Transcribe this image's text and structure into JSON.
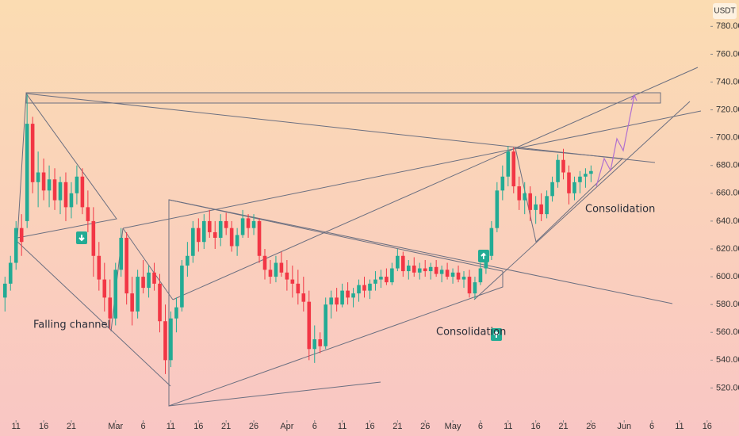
{
  "chart_data": {
    "type": "candlestick",
    "currency": "USDT",
    "x": [
      -2,
      -1,
      0,
      1,
      2,
      3,
      4,
      5,
      6,
      7,
      8,
      9,
      10,
      11,
      12,
      13,
      14,
      15,
      16,
      17,
      18,
      19,
      20,
      21,
      22,
      23,
      24,
      25,
      26,
      27,
      28,
      29,
      30,
      31,
      32,
      33,
      34,
      35,
      36,
      37,
      38,
      39,
      40,
      41,
      42,
      43,
      44,
      45,
      46,
      47,
      48,
      49,
      50,
      51,
      52,
      53,
      54,
      55,
      56,
      57,
      58,
      59,
      60,
      61,
      62,
      63,
      64,
      65,
      66,
      67,
      68,
      69,
      70,
      71,
      72,
      73,
      74,
      75,
      76,
      77,
      78,
      79,
      80,
      81,
      82,
      83,
      84,
      85,
      86,
      87,
      88,
      89,
      90,
      91,
      92,
      93,
      94,
      95,
      96,
      97,
      98,
      99,
      100,
      101,
      102,
      103,
      104
    ],
    "open": [
      585,
      595,
      610,
      635,
      640,
      710,
      668,
      675,
      662,
      670,
      655,
      668,
      650,
      660,
      672,
      650,
      640,
      615,
      598,
      585,
      570,
      605,
      628,
      588,
      575,
      600,
      592,
      603,
      595,
      568,
      540,
      570,
      578,
      608,
      615,
      635,
      625,
      640,
      632,
      628,
      640,
      635,
      622,
      630,
      642,
      635,
      640,
      615,
      605,
      600,
      610,
      603,
      598,
      595,
      588,
      582,
      548,
      555,
      550,
      580,
      585,
      580,
      590,
      585,
      588,
      594,
      590,
      595,
      598,
      600,
      596,
      606,
      615,
      604,
      608,
      603,
      606,
      604,
      607,
      602,
      605,
      600,
      603,
      598,
      600,
      588,
      596,
      606,
      615,
      635,
      662,
      672,
      690,
      665,
      655,
      660,
      648,
      652,
      645,
      658,
      668,
      684,
      675,
      660,
      668,
      672,
      674
    ],
    "high": [
      600,
      615,
      640,
      645,
      731,
      715,
      690,
      685,
      680,
      678,
      672,
      675,
      668,
      680,
      678,
      662,
      650,
      625,
      610,
      598,
      610,
      635,
      632,
      600,
      605,
      612,
      608,
      610,
      602,
      580,
      575,
      585,
      612,
      625,
      640,
      642,
      645,
      648,
      640,
      645,
      646,
      640,
      635,
      648,
      645,
      645,
      642,
      620,
      612,
      615,
      618,
      612,
      608,
      605,
      600,
      590,
      565,
      560,
      585,
      590,
      592,
      595,
      596,
      592,
      598,
      600,
      598,
      604,
      605,
      606,
      610,
      620,
      618,
      612,
      614,
      610,
      612,
      610,
      612,
      608,
      610,
      606,
      608,
      604,
      605,
      600,
      610,
      618,
      640,
      668,
      680,
      694,
      693,
      672,
      668,
      665,
      658,
      660,
      662,
      672,
      688,
      692,
      680,
      672,
      676,
      678,
      680
    ],
    "low": [
      575,
      590,
      605,
      615,
      635,
      660,
      650,
      655,
      650,
      648,
      645,
      640,
      642,
      652,
      645,
      632,
      600,
      590,
      575,
      562,
      565,
      600,
      580,
      565,
      570,
      588,
      585,
      590,
      560,
      530,
      535,
      560,
      575,
      600,
      610,
      618,
      620,
      628,
      620,
      622,
      630,
      618,
      615,
      628,
      628,
      630,
      610,
      598,
      595,
      596,
      600,
      590,
      585,
      580,
      575,
      540,
      538,
      545,
      548,
      570,
      575,
      578,
      580,
      578,
      582,
      585,
      584,
      590,
      592,
      594,
      594,
      604,
      600,
      598,
      600,
      598,
      600,
      598,
      600,
      596,
      598,
      595,
      596,
      592,
      585,
      584,
      594,
      602,
      612,
      632,
      655,
      665,
      660,
      648,
      645,
      640,
      638,
      640,
      642,
      654,
      664,
      670,
      652,
      655,
      660,
      664,
      668
    ],
    "close": [
      595,
      610,
      635,
      625,
      710,
      668,
      675,
      662,
      670,
      655,
      668,
      650,
      660,
      672,
      650,
      640,
      615,
      598,
      585,
      570,
      605,
      628,
      588,
      575,
      600,
      592,
      603,
      595,
      568,
      540,
      570,
      578,
      608,
      615,
      635,
      625,
      640,
      632,
      628,
      640,
      635,
      622,
      630,
      642,
      635,
      640,
      615,
      605,
      600,
      610,
      603,
      598,
      595,
      588,
      582,
      548,
      555,
      550,
      580,
      585,
      580,
      590,
      585,
      588,
      594,
      590,
      595,
      598,
      600,
      596,
      606,
      615,
      604,
      608,
      603,
      606,
      604,
      607,
      602,
      605,
      600,
      603,
      598,
      600,
      588,
      596,
      606,
      615,
      635,
      662,
      672,
      690,
      665,
      655,
      660,
      648,
      652,
      645,
      658,
      668,
      684,
      675,
      660,
      668,
      672,
      674,
      676
    ],
    "xlim": [
      -2.9,
      125.6
    ],
    "xticks": [
      {
        "value": 0,
        "label": "11"
      },
      {
        "value": 5,
        "label": "16"
      },
      {
        "value": 10,
        "label": "21"
      },
      {
        "value": 18,
        "label": "Mar"
      },
      {
        "value": 23,
        "label": "6"
      },
      {
        "value": 28,
        "label": "11"
      },
      {
        "value": 33,
        "label": "16"
      },
      {
        "value": 38,
        "label": "21"
      },
      {
        "value": 43,
        "label": "26"
      },
      {
        "value": 49,
        "label": "Apr"
      },
      {
        "value": 54,
        "label": "6"
      },
      {
        "value": 59,
        "label": "11"
      },
      {
        "value": 64,
        "label": "16"
      },
      {
        "value": 69,
        "label": "21"
      },
      {
        "value": 74,
        "label": "26"
      },
      {
        "value": 79,
        "label": "May"
      },
      {
        "value": 84,
        "label": "6"
      },
      {
        "value": 89,
        "label": "11"
      },
      {
        "value": 94,
        "label": "16"
      },
      {
        "value": 99,
        "label": "21"
      },
      {
        "value": 104,
        "label": "26"
      },
      {
        "value": 110,
        "label": "Jun"
      },
      {
        "value": 115,
        "label": "6"
      },
      {
        "value": 120,
        "label": "11"
      },
      {
        "value": 125,
        "label": "16"
      }
    ],
    "ylim": [
      498,
      799
    ],
    "yticks": [
      {
        "value": 520,
        "label": "520.00"
      },
      {
        "value": 540,
        "label": "540.00"
      },
      {
        "value": 560,
        "label": "560.00"
      },
      {
        "value": 580,
        "label": "580.00"
      },
      {
        "value": 600,
        "label": "600.00"
      },
      {
        "value": 620,
        "label": "620.00"
      },
      {
        "value": 640,
        "label": "640.00"
      },
      {
        "value": 660,
        "label": "660.00"
      },
      {
        "value": 680,
        "label": "680.00"
      },
      {
        "value": 700,
        "label": "700.00"
      },
      {
        "value": 720,
        "label": "720.00"
      },
      {
        "value": 740,
        "label": "740.00"
      },
      {
        "value": 760,
        "label": "760.00"
      },
      {
        "value": 780,
        "label": "780.00"
      }
    ],
    "up_color": "#22ab94",
    "down_color": "#f23645",
    "annotations": [
      "Falling channel",
      "Consolidation",
      "Consolidation"
    ]
  }
}
